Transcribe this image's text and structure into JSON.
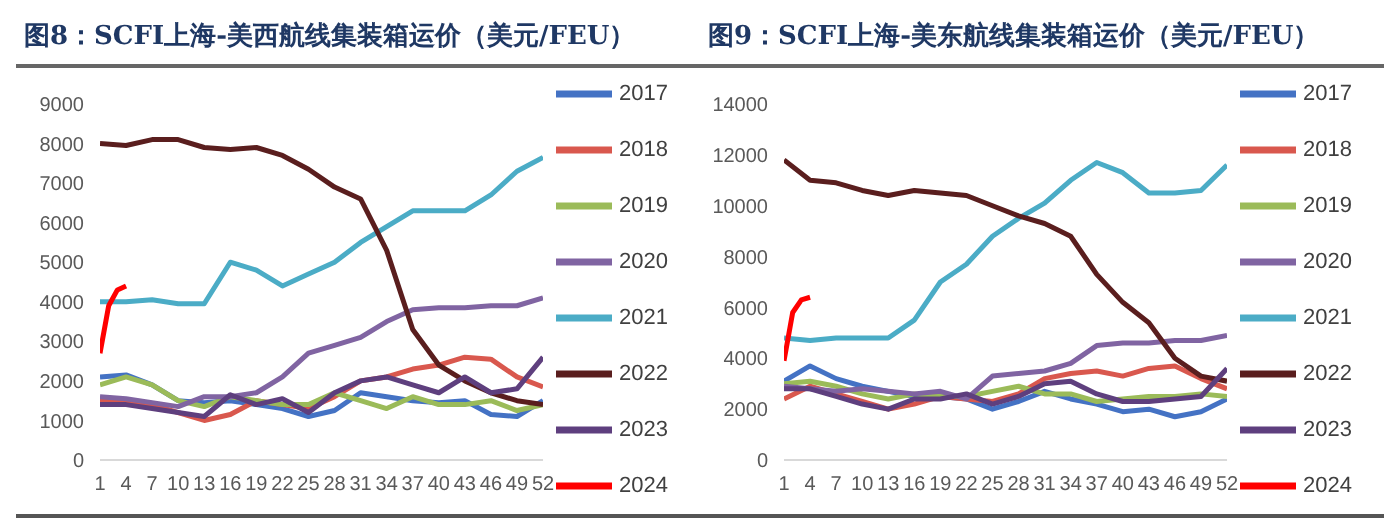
{
  "chart_data": [
    {
      "type": "line",
      "title": "图8：SCFI上海-美西航线集装箱运价（美元/FEU）",
      "xlim": [
        1,
        52
      ],
      "xticks": [
        1,
        4,
        7,
        10,
        13,
        16,
        19,
        22,
        25,
        28,
        31,
        34,
        37,
        40,
        43,
        46,
        49,
        52
      ],
      "ylim": [
        0,
        9000
      ],
      "yticks": [
        0,
        1000,
        2000,
        3000,
        4000,
        5000,
        6000,
        7000,
        8000,
        9000
      ],
      "grid": false,
      "legend": "right",
      "marker": "none",
      "line_style": "solid",
      "x": [
        1,
        4,
        7,
        10,
        13,
        16,
        19,
        22,
        25,
        28,
        31,
        34,
        37,
        40,
        43,
        46,
        49,
        52
      ],
      "series": [
        {
          "name": "2017",
          "color": "#4472c4",
          "values": [
            2100,
            2150,
            1900,
            1500,
            1450,
            1500,
            1400,
            1300,
            1100,
            1250,
            1700,
            1600,
            1500,
            1450,
            1500,
            1150,
            1100,
            1500
          ]
        },
        {
          "name": "2018",
          "color": "#d9584e",
          "values": [
            1500,
            1500,
            1400,
            1200,
            1000,
            1150,
            1500,
            1400,
            1300,
            1600,
            2000,
            2100,
            2300,
            2400,
            2600,
            2550,
            2100,
            1850
          ]
        },
        {
          "name": "2019",
          "color": "#9bbb59",
          "values": [
            1900,
            2100,
            1900,
            1500,
            1350,
            1600,
            1500,
            1400,
            1400,
            1700,
            1500,
            1300,
            1600,
            1400,
            1400,
            1500,
            1250,
            1400
          ]
        },
        {
          "name": "2020",
          "color": "#8064a2",
          "values": [
            1600,
            1550,
            1450,
            1350,
            1600,
            1600,
            1700,
            2100,
            2700,
            2900,
            3100,
            3500,
            3800,
            3850,
            3850,
            3900,
            3900,
            4100
          ]
        },
        {
          "name": "2021",
          "color": "#4bacc6",
          "values": [
            4000,
            4000,
            4050,
            3950,
            3950,
            5000,
            4800,
            4400,
            4700,
            5000,
            5500,
            5900,
            6300,
            6300,
            6300,
            6700,
            7300,
            7650
          ]
        },
        {
          "name": "2022",
          "color": "#5a1e1e",
          "values": [
            8000,
            7950,
            8100,
            8100,
            7900,
            7850,
            7900,
            7700,
            7350,
            6900,
            6600,
            5300,
            3300,
            2400,
            2000,
            1700,
            1500,
            1400
          ]
        },
        {
          "name": "2023",
          "color": "#5e3f7e",
          "values": [
            1400,
            1400,
            1300,
            1200,
            1100,
            1650,
            1400,
            1550,
            1200,
            1700,
            2000,
            2100,
            1900,
            1700,
            2100,
            1700,
            1800,
            2600
          ]
        },
        {
          "name": "2024",
          "color": "#ff0000",
          "x": [
            1,
            2,
            3,
            4
          ],
          "values": [
            2700,
            3900,
            4300,
            4400
          ]
        }
      ]
    },
    {
      "type": "line",
      "title": "图9：SCFI上海-美东航线集装箱运价（美元/FEU）",
      "xlim": [
        1,
        52
      ],
      "xticks": [
        1,
        4,
        7,
        10,
        13,
        16,
        19,
        22,
        25,
        28,
        31,
        34,
        37,
        40,
        43,
        46,
        49,
        52
      ],
      "ylim": [
        0,
        14000
      ],
      "yticks": [
        0,
        2000,
        4000,
        6000,
        8000,
        10000,
        12000,
        14000
      ],
      "grid": false,
      "legend": "right",
      "marker": "none",
      "line_style": "solid",
      "x": [
        1,
        4,
        7,
        10,
        13,
        16,
        19,
        22,
        25,
        28,
        31,
        34,
        37,
        40,
        43,
        46,
        49,
        52
      ],
      "series": [
        {
          "name": "2017",
          "color": "#4472c4",
          "values": [
            3100,
            3700,
            3200,
            2900,
            2700,
            2500,
            2500,
            2400,
            2000,
            2300,
            2700,
            2400,
            2200,
            1900,
            2000,
            1700,
            1900,
            2400
          ]
        },
        {
          "name": "2018",
          "color": "#d9584e",
          "values": [
            2400,
            2900,
            2600,
            2300,
            2000,
            2200,
            2500,
            2400,
            2300,
            2600,
            3200,
            3400,
            3500,
            3300,
            3600,
            3700,
            3200,
            2800
          ]
        },
        {
          "name": "2019",
          "color": "#9bbb59",
          "values": [
            3000,
            3100,
            2900,
            2600,
            2400,
            2600,
            2500,
            2500,
            2700,
            2900,
            2600,
            2600,
            2300,
            2400,
            2500,
            2500,
            2600,
            2500
          ]
        },
        {
          "name": "2020",
          "color": "#8064a2",
          "values": [
            2900,
            2800,
            2700,
            2800,
            2700,
            2600,
            2700,
            2400,
            3300,
            3400,
            3500,
            3800,
            4500,
            4600,
            4600,
            4700,
            4700,
            4900
          ]
        },
        {
          "name": "2021",
          "color": "#4bacc6",
          "values": [
            4800,
            4700,
            4800,
            4800,
            4800,
            5500,
            7000,
            7700,
            8800,
            9500,
            10100,
            11000,
            11700,
            11300,
            10500,
            10500,
            10600,
            11600
          ]
        },
        {
          "name": "2022",
          "color": "#5a1e1e",
          "values": [
            11800,
            11000,
            10900,
            10600,
            10400,
            10600,
            10500,
            10400,
            10000,
            9600,
            9300,
            8800,
            7300,
            6200,
            5400,
            4000,
            3300,
            3100
          ]
        },
        {
          "name": "2023",
          "color": "#5e3f7e",
          "values": [
            2800,
            2800,
            2500,
            2200,
            2000,
            2400,
            2400,
            2600,
            2200,
            2500,
            3000,
            3100,
            2600,
            2300,
            2300,
            2400,
            2500,
            3600
          ]
        },
        {
          "name": "2024",
          "color": "#ff0000",
          "x": [
            1,
            2,
            3,
            4
          ],
          "values": [
            3900,
            5800,
            6300,
            6400
          ]
        }
      ]
    }
  ]
}
